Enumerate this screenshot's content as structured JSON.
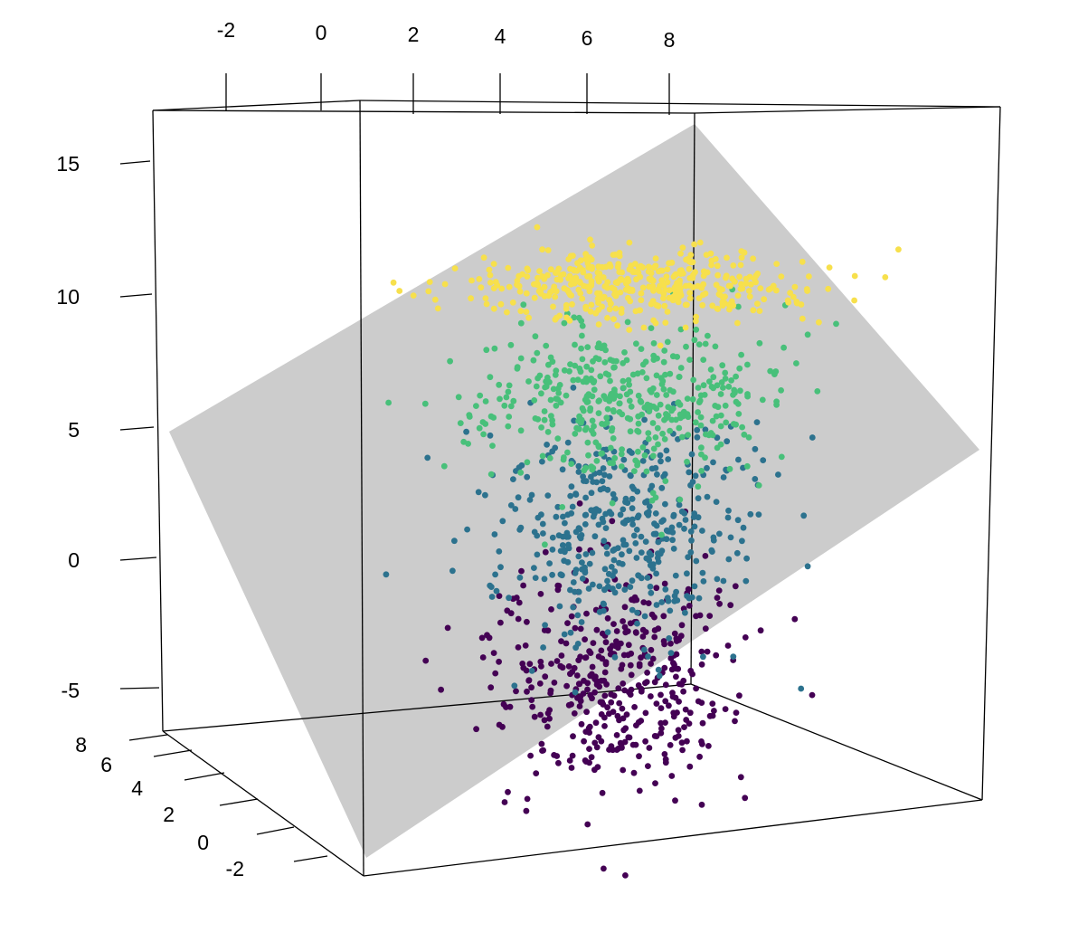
{
  "chart_data": {
    "type": "scatter",
    "title": "",
    "xlabel": "",
    "ylabel": "",
    "zlabel": "",
    "grid": false,
    "legend": "none",
    "axes": {
      "x": {
        "ticks": [
          "-2",
          "0",
          "2",
          "4",
          "6",
          "8"
        ]
      },
      "y": {
        "ticks": [
          "-2",
          "0",
          "2",
          "4",
          "6",
          "8"
        ]
      },
      "z": {
        "ticks": [
          "-5",
          "0",
          "5",
          "10",
          "15"
        ]
      }
    },
    "plane_color": "#cccccc",
    "series": [
      {
        "color": "#440154",
        "center": [
          3.0,
          -0.5,
          -2.5
        ],
        "spread": [
          1.2,
          1.2,
          1.9
        ],
        "n": 420
      },
      {
        "color": "#2c728e",
        "center": [
          4.0,
          1.5,
          2.0
        ],
        "spread": [
          1.3,
          1.2,
          1.9
        ],
        "n": 420
      },
      {
        "color": "#48c07a",
        "center": [
          5.5,
          4.5,
          6.0
        ],
        "spread": [
          1.5,
          1.4,
          1.5
        ],
        "n": 420
      },
      {
        "color": "#f7e04c",
        "center": [
          6.5,
          6.0,
          10.2
        ],
        "spread": [
          1.7,
          1.4,
          0.7
        ],
        "n": 420
      }
    ]
  }
}
